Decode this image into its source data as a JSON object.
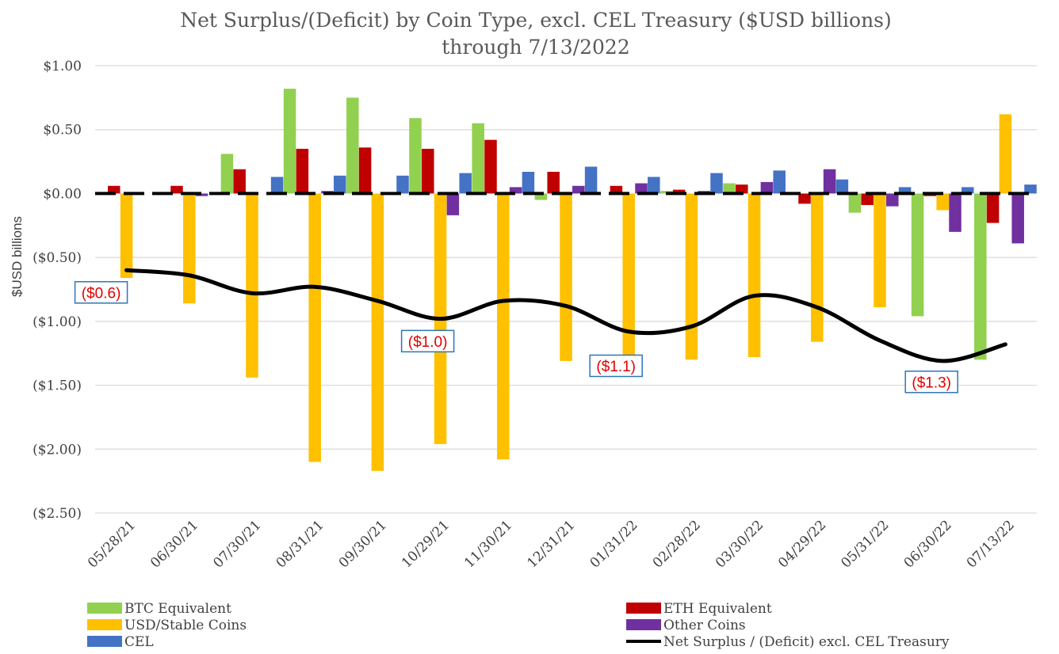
{
  "chart_data": {
    "type": "bar",
    "title": "Net Surplus/(Deficit) by Coin Type, excl. CEL Treasury ($USD billions)",
    "subtitle": "through 7/13/2022",
    "ylabel": "$USD billions",
    "ylim": [
      -2.5,
      1.0
    ],
    "yticks": [
      1.0,
      0.5,
      0.0,
      -0.5,
      -1.0,
      -1.5,
      -2.0,
      -2.5
    ],
    "ytick_labels": [
      "$1.00",
      "$0.50",
      "$0.00",
      "($0.50)",
      "($1.00)",
      "($1.50)",
      "($2.00)",
      "($2.50)"
    ],
    "categories": [
      "05/28/21",
      "06/30/21",
      "07/30/21",
      "08/31/21",
      "09/30/21",
      "10/29/21",
      "11/30/21",
      "12/31/21",
      "01/31/22",
      "02/28/22",
      "03/30/22",
      "04/29/22",
      "05/31/22",
      "06/30/22",
      "07/13/22"
    ],
    "grid": true,
    "legend_position": "bottom",
    "series": [
      {
        "name": "BTC Equivalent",
        "color": "#92d050",
        "type": "bar",
        "values": [
          0.01,
          0.01,
          0.31,
          0.82,
          0.75,
          0.59,
          0.55,
          -0.05,
          0.0,
          0.02,
          0.08,
          0.01,
          -0.15,
          -0.96,
          -1.3
        ]
      },
      {
        "name": "ETH Equivalent",
        "color": "#c00000",
        "type": "bar",
        "values": [
          0.06,
          0.06,
          0.19,
          0.35,
          0.36,
          0.35,
          0.42,
          0.17,
          0.06,
          0.03,
          0.07,
          -0.08,
          -0.09,
          -0.02,
          -0.23
        ]
      },
      {
        "name": "USD/Stable Coins",
        "color": "#ffc000",
        "type": "bar",
        "values": [
          -0.66,
          -0.86,
          -1.44,
          -2.1,
          -2.17,
          -1.96,
          -2.08,
          -1.31,
          -1.38,
          -1.3,
          -1.28,
          -1.16,
          -0.89,
          -0.13,
          0.62
        ]
      },
      {
        "name": "Other Coins",
        "color": "#7030a0",
        "type": "bar",
        "values": [
          0.0,
          -0.02,
          0.0,
          0.02,
          0.0,
          -0.17,
          0.05,
          0.06,
          0.08,
          0.02,
          0.09,
          0.19,
          -0.1,
          -0.3,
          -0.39
        ]
      },
      {
        "name": "CEL",
        "color": "#4472c4",
        "type": "bar",
        "values": [
          0.0,
          0.0,
          0.13,
          0.14,
          0.14,
          0.16,
          0.17,
          0.21,
          0.13,
          0.16,
          0.18,
          0.11,
          0.05,
          0.05,
          0.07
        ]
      },
      {
        "name": "Net Surplus / (Deficit) excl. CEL Treasury",
        "color": "#000000",
        "type": "line",
        "values": [
          -0.6,
          -0.64,
          -0.78,
          -0.73,
          -0.84,
          -0.98,
          -0.84,
          -0.88,
          -1.08,
          -1.04,
          -0.8,
          -0.89,
          -1.15,
          -1.31,
          -1.18
        ]
      }
    ],
    "annotations": [
      {
        "category": "05/28/21",
        "value": -0.6,
        "label": "($0.6)"
      },
      {
        "category": "10/29/21",
        "value": -1.0,
        "label": "($1.0)"
      },
      {
        "category": "01/31/22",
        "value": -1.1,
        "label": "($1.1)"
      },
      {
        "category": "06/30/22",
        "value": -1.3,
        "label": "($1.3)"
      }
    ]
  }
}
